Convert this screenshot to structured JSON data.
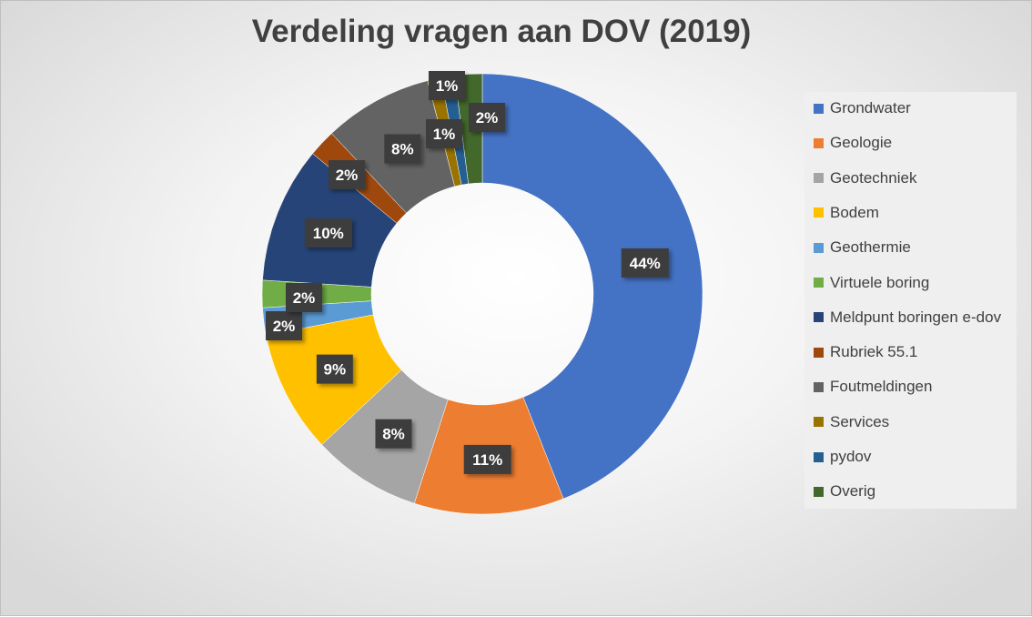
{
  "chart_data": {
    "type": "pie",
    "style": "donut",
    "title": "Verdeling vragen aan DOV (2019)",
    "legend_position": "right",
    "categories": [
      "Grondwater",
      "Geologie",
      "Geotechniek",
      "Bodem",
      "Geothermie",
      "Virtuele boring",
      "Meldpunt boringen e-dov",
      "Rubriek 55.1",
      "Foutmeldingen",
      "Services",
      "pydov",
      "Overig"
    ],
    "values": [
      44,
      11,
      8,
      9,
      2,
      2,
      10,
      2,
      8,
      1,
      1,
      2
    ],
    "data_labels": [
      "44%",
      "11%",
      "8%",
      "9%",
      "2%",
      "2%",
      "10%",
      "2%",
      "8%",
      "1%",
      "1%",
      "2%"
    ],
    "colors": [
      "#4472c4",
      "#ed7d31",
      "#a5a5a5",
      "#ffc000",
      "#5b9bd5",
      "#70ad47",
      "#264478",
      "#9e480e",
      "#636363",
      "#997300",
      "#255e91",
      "#43682b"
    ]
  }
}
